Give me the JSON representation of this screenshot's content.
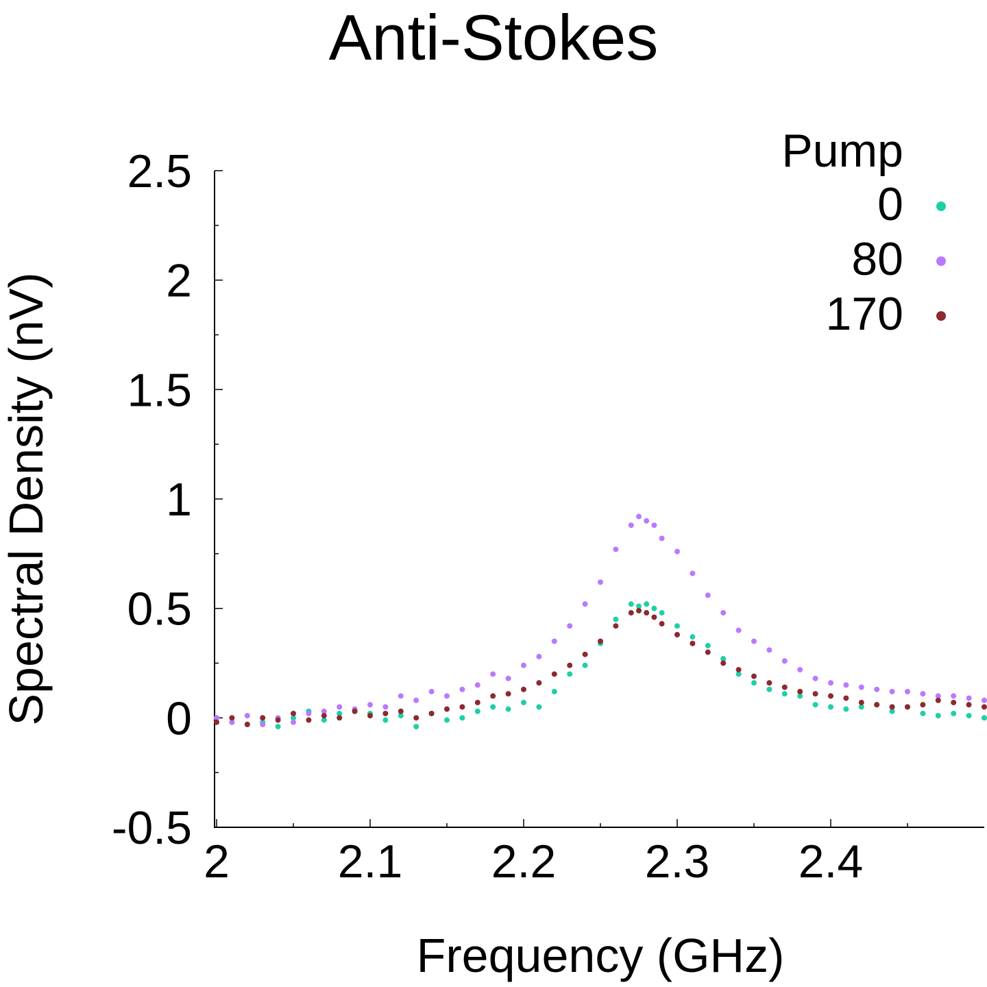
{
  "chart_data": {
    "type": "scatter",
    "title": "Anti-Stokes",
    "xlabel": "Frequency (GHz)",
    "ylabel": "Spectral Density (nV)",
    "xlim": [
      2.0,
      2.5
    ],
    "ylim": [
      -0.5,
      2.5
    ],
    "x_ticks": [
      2.0,
      2.1,
      2.2,
      2.3,
      2.4
    ],
    "x_tick_labels": [
      "2",
      "2.1",
      "2.2",
      "2.3",
      "2.4"
    ],
    "y_ticks": [
      -0.5,
      0,
      0.5,
      1,
      1.5,
      2,
      2.5
    ],
    "y_tick_labels": [
      "-0.5",
      "0",
      "0.5",
      "1",
      "1.5",
      "2",
      "2.5"
    ],
    "grid": false,
    "legend": {
      "title": "Pump",
      "position": "top-right"
    },
    "x": [
      2.0,
      2.01,
      2.02,
      2.03,
      2.04,
      2.05,
      2.06,
      2.07,
      2.08,
      2.09,
      2.1,
      2.11,
      2.12,
      2.13,
      2.14,
      2.15,
      2.16,
      2.17,
      2.18,
      2.19,
      2.2,
      2.21,
      2.22,
      2.23,
      2.24,
      2.25,
      2.26,
      2.27,
      2.275,
      2.28,
      2.285,
      2.29,
      2.3,
      2.31,
      2.32,
      2.33,
      2.34,
      2.35,
      2.36,
      2.37,
      2.38,
      2.39,
      2.4,
      2.41,
      2.42,
      2.43,
      2.44,
      2.45,
      2.46,
      2.47,
      2.48,
      2.49,
      2.5
    ],
    "series": [
      {
        "name": "0",
        "color": "#1fcfa7",
        "values": [
          0.0,
          -0.02,
          -0.03,
          -0.02,
          -0.04,
          0.0,
          0.03,
          -0.01,
          0.02,
          0.03,
          0.02,
          -0.01,
          0.01,
          -0.04,
          0.02,
          -0.01,
          0.0,
          0.03,
          0.05,
          0.04,
          0.07,
          0.05,
          0.12,
          0.2,
          0.24,
          0.34,
          0.45,
          0.52,
          0.51,
          0.52,
          0.5,
          0.48,
          0.42,
          0.37,
          0.33,
          0.27,
          0.2,
          0.16,
          0.13,
          0.11,
          0.1,
          0.06,
          0.05,
          0.04,
          0.05,
          0.06,
          0.03,
          0.05,
          0.02,
          0.01,
          0.02,
          0.01,
          0.0
        ]
      },
      {
        "name": "80",
        "color": "#b979ff",
        "values": [
          0.0,
          -0.02,
          0.01,
          -0.03,
          0.0,
          -0.02,
          0.02,
          0.03,
          0.05,
          0.04,
          0.06,
          0.05,
          0.1,
          0.08,
          0.12,
          0.1,
          0.13,
          0.15,
          0.2,
          0.18,
          0.24,
          0.28,
          0.35,
          0.42,
          0.52,
          0.62,
          0.77,
          0.88,
          0.92,
          0.9,
          0.88,
          0.82,
          0.76,
          0.66,
          0.56,
          0.48,
          0.4,
          0.35,
          0.31,
          0.26,
          0.22,
          0.18,
          0.16,
          0.15,
          0.14,
          0.13,
          0.12,
          0.12,
          0.11,
          0.1,
          0.1,
          0.09,
          0.08
        ]
      },
      {
        "name": "170",
        "color": "#8b2a2f",
        "values": [
          -0.02,
          0.0,
          -0.03,
          0.0,
          -0.01,
          0.02,
          -0.01,
          0.01,
          0.0,
          0.03,
          0.01,
          0.02,
          0.03,
          0.0,
          0.02,
          0.04,
          0.05,
          0.07,
          0.1,
          0.11,
          0.13,
          0.16,
          0.2,
          0.24,
          0.29,
          0.35,
          0.42,
          0.48,
          0.49,
          0.48,
          0.46,
          0.43,
          0.38,
          0.34,
          0.3,
          0.25,
          0.22,
          0.19,
          0.16,
          0.14,
          0.12,
          0.11,
          0.1,
          0.09,
          0.07,
          0.06,
          0.05,
          0.05,
          0.06,
          0.08,
          0.07,
          0.06,
          0.05
        ]
      }
    ]
  }
}
